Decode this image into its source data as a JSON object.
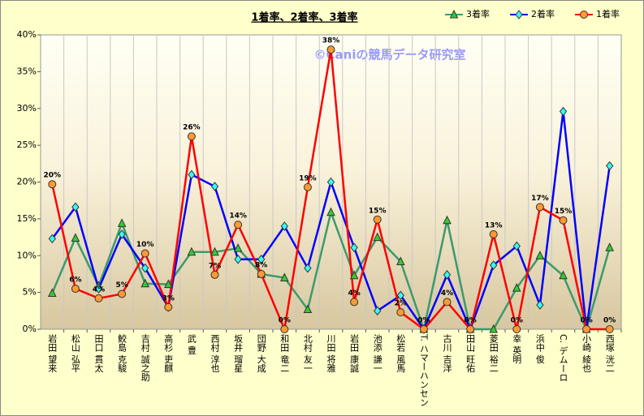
{
  "chart_data": {
    "type": "line",
    "title": "1着率、2着率、3着率",
    "annotation": "©Caniの競馬データ研究室",
    "categories": [
      "岩田 望来",
      "松山 弘平",
      "田口 貫太",
      "鮫島 克駿",
      "吉村 誠之助",
      "高杉 吏麒",
      "武 豊",
      "西村 淳也",
      "坂井 瑠星",
      "団野 大成",
      "和田 竜二",
      "北村 友一",
      "川田 将雅",
      "岩田 康誠",
      "池添 謙一",
      "松若 風馬",
      "T. ハマーハンセン",
      "古川 吉洋",
      "田山 旺佑",
      "菱田 裕二",
      "幸 英明",
      "浜中 俊",
      "C. デムーロ",
      "小崎 綾也",
      "西塚 洸二"
    ],
    "series": [
      {
        "name": "3着率",
        "color": "#3c9a6c",
        "marker": "triangle",
        "marker_color": "#33cc33",
        "values": [
          4.9,
          12.4,
          5.9,
          14.4,
          6.2,
          6.1,
          10.5,
          10.5,
          11.0,
          7.5,
          7.0,
          2.7,
          15.9,
          7.3,
          12.5,
          9.2,
          0,
          14.8,
          0,
          0,
          5.6,
          10.0,
          7.3,
          0,
          11.1
        ]
      },
      {
        "name": "2着率",
        "color": "#0000ff",
        "marker": "diamond",
        "marker_color": "#33ffff",
        "values": [
          12.3,
          16.6,
          5.5,
          12.9,
          8.3,
          3.0,
          21.0,
          19.4,
          9.5,
          9.5,
          14.0,
          8.3,
          20.0,
          11.1,
          2.5,
          4.6,
          0,
          7.4,
          0,
          8.7,
          11.3,
          3.3,
          29.6,
          0,
          22.2
        ]
      },
      {
        "name": "1着率",
        "color": "#ff0000",
        "marker": "circle",
        "marker_color": "#ff9933",
        "values": [
          19.7,
          5.5,
          4.2,
          4.8,
          10.3,
          3.0,
          26.2,
          7.4,
          14.2,
          7.5,
          0,
          19.3,
          38.0,
          3.7,
          14.9,
          2.3,
          0,
          3.7,
          0,
          12.9,
          0,
          16.6,
          14.8,
          0,
          0
        ],
        "value_labels": [
          "20%",
          "6%",
          "4%",
          "5%",
          "10%",
          "3%",
          "26%",
          "7%",
          "14%",
          "8%",
          "0%",
          "19%",
          "38%",
          "4%",
          "15%",
          "2%",
          "0%",
          "4%",
          "0%",
          "13%",
          "0%",
          "17%",
          "15%",
          "0%",
          "0%"
        ]
      }
    ],
    "ylim": [
      0,
      40
    ],
    "yticks": [
      {
        "value": 0,
        "label": "0%"
      },
      {
        "value": 5,
        "label": "5%"
      },
      {
        "value": 10,
        "label": "10%"
      },
      {
        "value": 15,
        "label": "15%"
      },
      {
        "value": 20,
        "label": "20%"
      },
      {
        "value": 25,
        "label": "25%"
      },
      {
        "value": 30,
        "label": "30%"
      },
      {
        "value": 35,
        "label": "35%"
      },
      {
        "value": 40,
        "label": "40%"
      }
    ],
    "legend": "top-right"
  }
}
